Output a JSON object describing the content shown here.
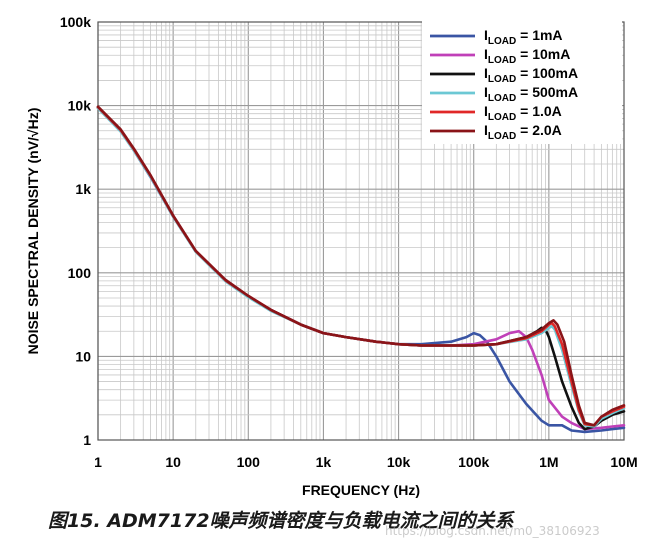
{
  "chart_data": {
    "type": "line",
    "x_scale": "log",
    "y_scale": "log",
    "xlim": [
      1,
      10000000
    ],
    "ylim": [
      1,
      100000
    ],
    "xlabel": "FREQUENCY (Hz)",
    "ylabel": "NOISE SPECTRAL DENSITY (nV/√Hz)",
    "x_ticks": [
      "1",
      "10",
      "100",
      "1k",
      "10k",
      "100k",
      "1M",
      "10M"
    ],
    "y_ticks": [
      "1",
      "10",
      "100",
      "1k",
      "10k",
      "100k"
    ],
    "grid": true,
    "legend_position": "top-right",
    "series": [
      {
        "label_main": "I",
        "label_sub": "LOAD",
        "label_rest": " = 1mA",
        "color": "#3a55a4",
        "x": [
          1,
          2,
          3,
          5,
          10,
          20,
          50,
          100,
          200,
          500,
          1000,
          2000,
          5000,
          10000,
          20000,
          50000,
          80000,
          100000,
          120000,
          150000,
          200000,
          300000,
          500000,
          800000,
          1000000,
          1500000,
          2000000,
          3000000,
          5000000,
          7000000,
          10000000
        ],
        "y": [
          9500,
          5000,
          2900,
          1400,
          470,
          180,
          80,
          52,
          36,
          24,
          19,
          17,
          15,
          14,
          14,
          15,
          17,
          19,
          18,
          15,
          10,
          5,
          2.7,
          1.7,
          1.5,
          1.5,
          1.3,
          1.25,
          1.3,
          1.35,
          1.4
        ]
      },
      {
        "label_main": "I",
        "label_sub": "LOAD",
        "label_rest": " = 10mA",
        "color": "#c040b8",
        "x": [
          1,
          2,
          3,
          5,
          10,
          20,
          50,
          100,
          200,
          500,
          1000,
          2000,
          5000,
          10000,
          20000,
          50000,
          100000,
          200000,
          300000,
          400000,
          500000,
          600000,
          800000,
          1000000,
          1500000,
          2000000,
          3000000,
          5000000,
          7000000,
          10000000
        ],
        "y": [
          9500,
          5100,
          3000,
          1450,
          480,
          180,
          80,
          52,
          36,
          24,
          19,
          17,
          15,
          14,
          13.5,
          13.5,
          14,
          16,
          19,
          20,
          17,
          12,
          6,
          3,
          1.9,
          1.6,
          1.35,
          1.4,
          1.45,
          1.5
        ]
      },
      {
        "label_main": "I",
        "label_sub": "LOAD",
        "label_rest": " = 100mA",
        "color": "#111111",
        "x": [
          1,
          2,
          3,
          5,
          10,
          20,
          50,
          100,
          200,
          500,
          1000,
          2000,
          5000,
          10000,
          20000,
          50000,
          100000,
          200000,
          500000,
          700000,
          800000,
          900000,
          1000000,
          1200000,
          1500000,
          2000000,
          2500000,
          3000000,
          4000000,
          5000000,
          7000000,
          10000000
        ],
        "y": [
          9400,
          5000,
          2950,
          1450,
          480,
          180,
          80,
          52,
          36,
          24,
          19,
          17,
          15,
          14,
          13.5,
          13.5,
          13.5,
          14,
          17,
          20,
          22,
          21,
          17,
          10,
          5,
          2.5,
          1.6,
          1.35,
          1.45,
          1.7,
          2.0,
          2.2
        ]
      },
      {
        "label_main": "I",
        "label_sub": "LOAD",
        "label_rest": " = 500mA",
        "color": "#6cc8d4",
        "x": [
          1,
          2,
          3,
          5,
          10,
          20,
          50,
          100,
          200,
          500,
          1000,
          2000,
          5000,
          10000,
          20000,
          50000,
          100000,
          200000,
          500000,
          800000,
          1000000,
          1100000,
          1200000,
          1500000,
          2000000,
          2500000,
          3000000,
          4000000,
          5000000,
          7000000,
          10000000
        ],
        "y": [
          9300,
          4900,
          2900,
          1420,
          470,
          178,
          79,
          51,
          35,
          24,
          19,
          17,
          15,
          14,
          13.5,
          13.5,
          13.5,
          14,
          16,
          19,
          22,
          23,
          21,
          12,
          4.5,
          2.2,
          1.5,
          1.45,
          1.8,
          2.1,
          2.4
        ]
      },
      {
        "label_main": "I",
        "label_sub": "LOAD",
        "label_rest": " = 1.0A",
        "color": "#e02828",
        "x": [
          1,
          2,
          3,
          5,
          10,
          20,
          50,
          100,
          200,
          500,
          1000,
          2000,
          5000,
          10000,
          20000,
          50000,
          100000,
          200000,
          500000,
          800000,
          1000000,
          1100000,
          1200000,
          1500000,
          2000000,
          2500000,
          3000000,
          4000000,
          5000000,
          7000000,
          10000000
        ],
        "y": [
          9600,
          5100,
          3000,
          1460,
          480,
          182,
          81,
          53,
          36,
          24,
          19,
          17,
          15,
          14,
          13.5,
          13.5,
          13.5,
          14,
          16.5,
          20,
          24,
          25,
          23,
          14,
          5,
          2.3,
          1.55,
          1.5,
          1.9,
          2.2,
          2.5
        ]
      },
      {
        "label_main": "I",
        "label_sub": "LOAD",
        "label_rest": " = 2.0A",
        "color": "#8a1418",
        "x": [
          1,
          2,
          3,
          5,
          10,
          20,
          50,
          100,
          200,
          500,
          1000,
          2000,
          5000,
          10000,
          20000,
          50000,
          100000,
          200000,
          500000,
          800000,
          1000000,
          1150000,
          1300000,
          1600000,
          2000000,
          2500000,
          3000000,
          4000000,
          5000000,
          7000000,
          10000000
        ],
        "y": [
          9700,
          5200,
          3050,
          1470,
          485,
          183,
          82,
          53,
          36,
          24,
          19,
          17,
          15,
          14,
          13.5,
          13.5,
          13.5,
          14,
          17,
          21,
          25,
          27,
          24,
          15,
          6,
          2.6,
          1.6,
          1.5,
          1.9,
          2.3,
          2.6
        ]
      }
    ]
  },
  "caption": {
    "figure": "图15.",
    "text": " ADM7172噪声频谱密度与负载电流之间的关系"
  },
  "watermark": "https://blog.csdn.net/m0_38106923"
}
